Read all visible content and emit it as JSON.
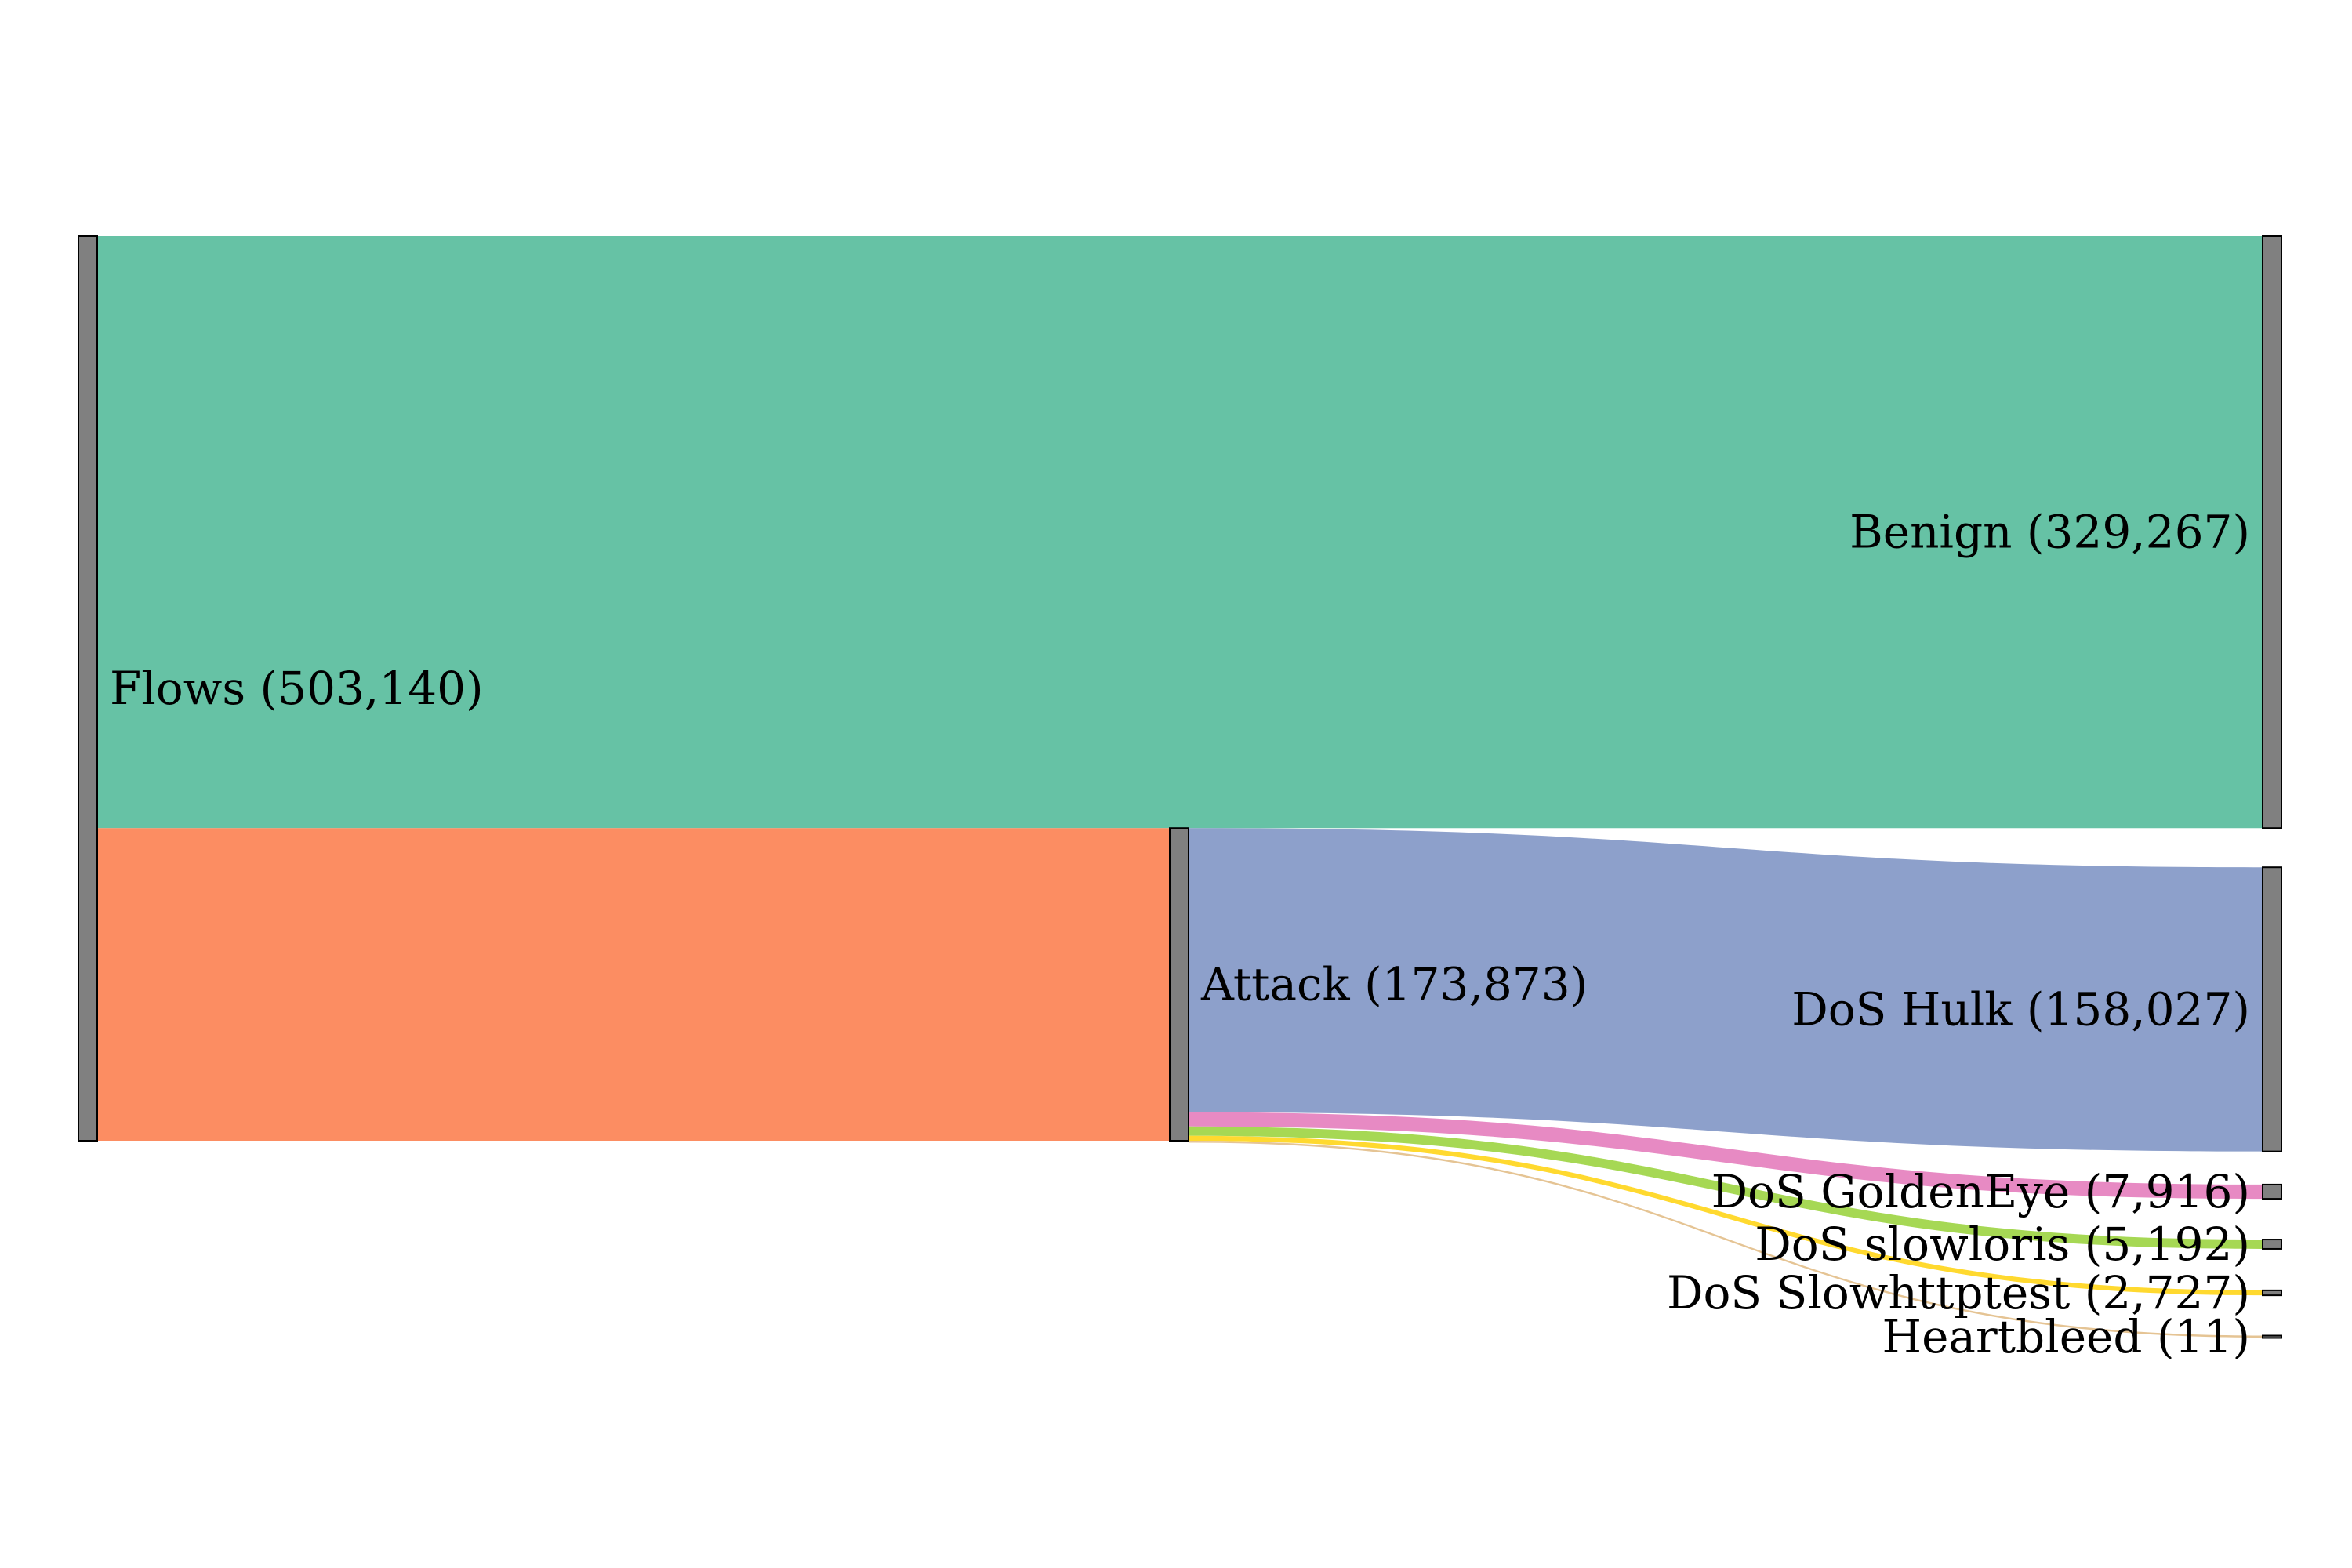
{
  "chart_data": {
    "type": "sankey",
    "title": "",
    "nodes": [
      {
        "id": "flows",
        "label": "Flows (503,140)",
        "value": 503140,
        "column": 0
      },
      {
        "id": "attack",
        "label": "Attack (173,873)",
        "value": 173873,
        "column": 1
      },
      {
        "id": "benign",
        "label": "Benign (329,267)",
        "value": 329267,
        "column": 2
      },
      {
        "id": "hulk",
        "label": "DoS Hulk (158,027)",
        "value": 158027,
        "column": 2
      },
      {
        "id": "goldeneye",
        "label": "DoS GoldenEye (7,916)",
        "value": 7916,
        "column": 2
      },
      {
        "id": "slowloris",
        "label": "DoS slowloris (5,192)",
        "value": 5192,
        "column": 2
      },
      {
        "id": "slowhttptest",
        "label": "DoS Slowhttptest (2,727)",
        "value": 2727,
        "column": 2
      },
      {
        "id": "heartbleed",
        "label": "Heartbleed (11)",
        "value": 11,
        "column": 2
      }
    ],
    "links": [
      {
        "source": "flows",
        "target": "benign",
        "value": 329267,
        "color": "#66c2a5"
      },
      {
        "source": "flows",
        "target": "attack",
        "value": 173873,
        "color": "#fc8d62"
      },
      {
        "source": "attack",
        "target": "hulk",
        "value": 158027,
        "color": "#8da0cb"
      },
      {
        "source": "attack",
        "target": "goldeneye",
        "value": 7916,
        "color": "#e78ac3"
      },
      {
        "source": "attack",
        "target": "slowloris",
        "value": 5192,
        "color": "#a6d854"
      },
      {
        "source": "attack",
        "target": "slowhttptest",
        "value": 2727,
        "color": "#ffd92f"
      },
      {
        "source": "attack",
        "target": "heartbleed",
        "value": 11,
        "color": "#e5c494"
      }
    ],
    "node_color": "#808080"
  }
}
